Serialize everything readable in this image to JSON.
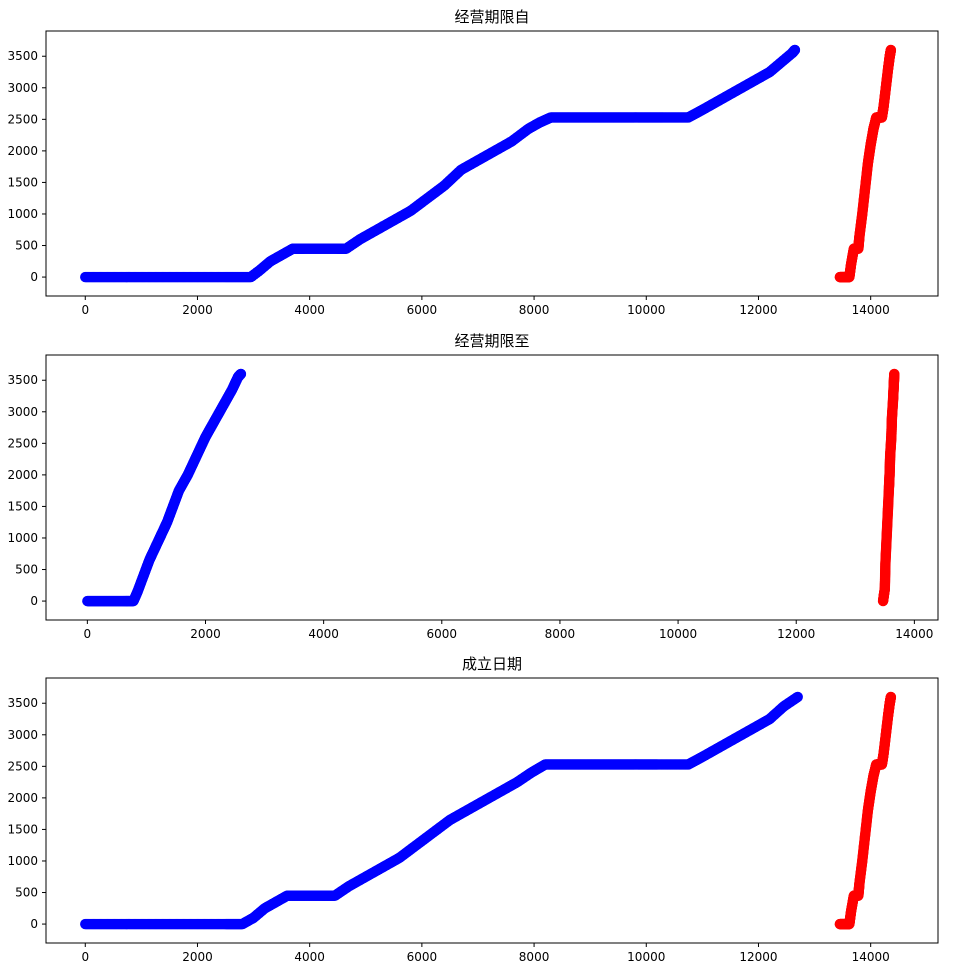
{
  "chart_data": [
    {
      "type": "scatter",
      "title": "经营期限自",
      "xlim": [
        -700,
        15200
      ],
      "ylim": [
        -300,
        3900
      ],
      "xticks": [
        "0",
        "2000",
        "4000",
        "6000",
        "8000",
        "10000",
        "12000",
        "14000"
      ],
      "yticks": [
        "0",
        "500",
        "1000",
        "1500",
        "2000",
        "2500",
        "3000",
        "3500"
      ],
      "grid": false,
      "series": [
        {
          "color": "#0000ff",
          "points": [
            [
              0,
              0
            ],
            [
              500,
              0
            ],
            [
              1000,
              0
            ],
            [
              1500,
              0
            ],
            [
              2000,
              0
            ],
            [
              2500,
              0
            ],
            [
              2950,
              0
            ],
            [
              3100,
              100
            ],
            [
              3300,
              250
            ],
            [
              3500,
              350
            ],
            [
              3700,
              450
            ],
            [
              3900,
              450
            ],
            [
              4200,
              450
            ],
            [
              4500,
              450
            ],
            [
              4650,
              450
            ],
            [
              4900,
              600
            ],
            [
              5200,
              750
            ],
            [
              5500,
              900
            ],
            [
              5800,
              1050
            ],
            [
              6100,
              1250
            ],
            [
              6400,
              1450
            ],
            [
              6700,
              1700
            ],
            [
              7000,
              1850
            ],
            [
              7300,
              2000
            ],
            [
              7600,
              2150
            ],
            [
              7900,
              2350
            ],
            [
              8100,
              2450
            ],
            [
              8300,
              2530
            ],
            [
              8700,
              2530
            ],
            [
              9100,
              2530
            ],
            [
              9500,
              2530
            ],
            [
              9900,
              2530
            ],
            [
              10300,
              2530
            ],
            [
              10750,
              2530
            ],
            [
              11000,
              2650
            ],
            [
              11300,
              2800
            ],
            [
              11600,
              2950
            ],
            [
              11900,
              3100
            ],
            [
              12200,
              3250
            ],
            [
              12400,
              3400
            ],
            [
              12600,
              3550
            ],
            [
              12650,
              3600
            ]
          ]
        },
        {
          "color": "#ff0000",
          "points": [
            [
              13450,
              0
            ],
            [
              13550,
              0
            ],
            [
              13620,
              0
            ],
            [
              13650,
              200
            ],
            [
              13700,
              450
            ],
            [
              13780,
              450
            ],
            [
              13800,
              650
            ],
            [
              13850,
              1000
            ],
            [
              13900,
              1400
            ],
            [
              13950,
              1800
            ],
            [
              14000,
              2100
            ],
            [
              14050,
              2350
            ],
            [
              14100,
              2530
            ],
            [
              14200,
              2530
            ],
            [
              14230,
              2700
            ],
            [
              14270,
              3000
            ],
            [
              14310,
              3300
            ],
            [
              14340,
              3500
            ],
            [
              14360,
              3600
            ]
          ]
        }
      ]
    },
    {
      "type": "scatter",
      "title": "经营期限至",
      "xlim": [
        -700,
        14400
      ],
      "ylim": [
        -300,
        3900
      ],
      "xticks": [
        "0",
        "2000",
        "4000",
        "6000",
        "8000",
        "10000",
        "12000",
        "14000"
      ],
      "yticks": [
        "0",
        "500",
        "1000",
        "1500",
        "2000",
        "2500",
        "3000",
        "3500"
      ],
      "grid": false,
      "series": [
        {
          "color": "#0000ff",
          "points": [
            [
              0,
              0
            ],
            [
              200,
              0
            ],
            [
              400,
              0
            ],
            [
              600,
              0
            ],
            [
              780,
              0
            ],
            [
              850,
              150
            ],
            [
              950,
              400
            ],
            [
              1050,
              650
            ],
            [
              1150,
              850
            ],
            [
              1250,
              1050
            ],
            [
              1350,
              1250
            ],
            [
              1450,
              1500
            ],
            [
              1550,
              1750
            ],
            [
              1700,
              2000
            ],
            [
              1850,
              2300
            ],
            [
              2000,
              2600
            ],
            [
              2150,
              2850
            ],
            [
              2300,
              3100
            ],
            [
              2450,
              3350
            ],
            [
              2550,
              3550
            ],
            [
              2600,
              3600
            ]
          ]
        },
        {
          "color": "#ff0000",
          "points": [
            [
              13470,
              0
            ],
            [
              13500,
              200
            ],
            [
              13510,
              600
            ],
            [
              13530,
              1000
            ],
            [
              13550,
              1400
            ],
            [
              13570,
              1800
            ],
            [
              13580,
              2000
            ],
            [
              13590,
              2300
            ],
            [
              13610,
              2600
            ],
            [
              13620,
              2900
            ],
            [
              13640,
              3200
            ],
            [
              13650,
              3400
            ],
            [
              13660,
              3600
            ]
          ]
        }
      ]
    },
    {
      "type": "scatter",
      "title": "成立日期",
      "xlim": [
        -700,
        15200
      ],
      "ylim": [
        -300,
        3900
      ],
      "xticks": [
        "0",
        "2000",
        "4000",
        "6000",
        "8000",
        "10000",
        "12000",
        "14000"
      ],
      "yticks": [
        "0",
        "500",
        "1000",
        "1500",
        "2000",
        "2500",
        "3000",
        "3500"
      ],
      "grid": false,
      "series": [
        {
          "color": "#0000ff",
          "points": [
            [
              0,
              0
            ],
            [
              500,
              0
            ],
            [
              1000,
              0
            ],
            [
              1500,
              0
            ],
            [
              2000,
              0
            ],
            [
              2500,
              0
            ],
            [
              2800,
              0
            ],
            [
              3000,
              100
            ],
            [
              3200,
              250
            ],
            [
              3400,
              350
            ],
            [
              3600,
              450
            ],
            [
              3900,
              450
            ],
            [
              4200,
              450
            ],
            [
              4450,
              450
            ],
            [
              4700,
              600
            ],
            [
              5000,
              750
            ],
            [
              5300,
              900
            ],
            [
              5600,
              1050
            ],
            [
              5900,
              1250
            ],
            [
              6200,
              1450
            ],
            [
              6500,
              1650
            ],
            [
              6800,
              1800
            ],
            [
              7100,
              1950
            ],
            [
              7400,
              2100
            ],
            [
              7700,
              2250
            ],
            [
              7950,
              2400
            ],
            [
              8200,
              2530
            ],
            [
              8600,
              2530
            ],
            [
              9000,
              2530
            ],
            [
              9400,
              2530
            ],
            [
              9800,
              2530
            ],
            [
              10200,
              2530
            ],
            [
              10750,
              2530
            ],
            [
              11000,
              2650
            ],
            [
              11300,
              2800
            ],
            [
              11600,
              2950
            ],
            [
              11900,
              3100
            ],
            [
              12200,
              3250
            ],
            [
              12450,
              3450
            ],
            [
              12700,
              3600
            ]
          ]
        },
        {
          "color": "#ff0000",
          "points": [
            [
              13450,
              0
            ],
            [
              13550,
              0
            ],
            [
              13620,
              0
            ],
            [
              13650,
              200
            ],
            [
              13700,
              450
            ],
            [
              13780,
              450
            ],
            [
              13800,
              650
            ],
            [
              13850,
              1000
            ],
            [
              13900,
              1400
            ],
            [
              13950,
              1800
            ],
            [
              14000,
              2100
            ],
            [
              14050,
              2350
            ],
            [
              14100,
              2530
            ],
            [
              14200,
              2530
            ],
            [
              14230,
              2700
            ],
            [
              14270,
              3000
            ],
            [
              14310,
              3300
            ],
            [
              14340,
              3500
            ],
            [
              14360,
              3600
            ]
          ]
        }
      ]
    }
  ]
}
